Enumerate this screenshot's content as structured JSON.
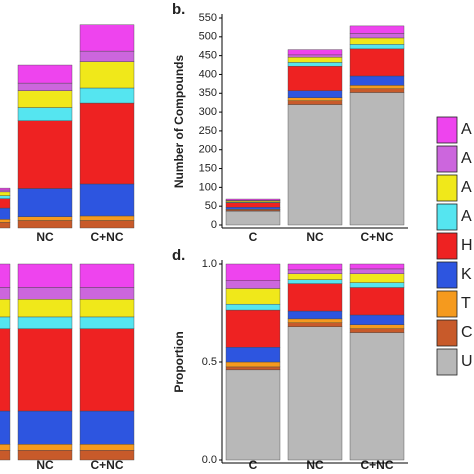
{
  "chart_data": [
    {
      "type": "bar",
      "stacked": true,
      "categories": [
        null,
        "NC",
        "C+NC"
      ],
      "ylim": [
        0,
        550
      ],
      "series": [
        {
          "color": "#c85a2a",
          "values": [
            15,
            20,
            20
          ]
        },
        {
          "color": "#f59a1e",
          "values": [
            8,
            10,
            12
          ]
        },
        {
          "color": "#2d55e0",
          "values": [
            30,
            75,
            85
          ]
        },
        {
          "color": "#ee2222",
          "values": [
            25,
            180,
            215
          ]
        },
        {
          "color": "#55e5f0",
          "values": [
            8,
            35,
            40
          ]
        },
        {
          "color": "#f0e81a",
          "values": [
            10,
            45,
            70
          ]
        },
        {
          "color": "#cc66dd",
          "values": [
            5,
            20,
            28
          ]
        },
        {
          "color": "#ee44ee",
          "values": [
            5,
            48,
            70
          ]
        }
      ]
    },
    {
      "type": "bar",
      "stacked": true,
      "panel_label": "b.",
      "y_label": "Number of Compounds",
      "categories": [
        "C",
        "NC",
        "C+NC"
      ],
      "ylim": [
        0,
        550
      ],
      "yticks": [
        0,
        50,
        100,
        150,
        200,
        250,
        300,
        350,
        400,
        450,
        500,
        550
      ],
      "series": [
        {
          "name": "U",
          "color": "#b8b8b8",
          "values": [
            37,
            320,
            352
          ]
        },
        {
          "name": "C",
          "color": "#c85a2a",
          "values": [
            3,
            10,
            10
          ]
        },
        {
          "name": "T",
          "color": "#f59a1e",
          "values": [
            2,
            8,
            9
          ]
        },
        {
          "name": "K",
          "color": "#2d55e0",
          "values": [
            5,
            19,
            25
          ]
        },
        {
          "name": "H",
          "color": "#ee2222",
          "values": [
            12,
            65,
            72
          ]
        },
        {
          "name": "A",
          "color": "#55e5f0",
          "values": [
            2,
            10,
            12
          ]
        },
        {
          "name": "A",
          "color": "#f0e81a",
          "values": [
            3,
            14,
            17
          ]
        },
        {
          "name": "A",
          "color": "#cc66dd",
          "values": [
            2,
            6,
            12
          ]
        },
        {
          "name": "A",
          "color": "#ee44ee",
          "values": [
            3,
            14,
            20
          ]
        }
      ]
    },
    {
      "type": "bar",
      "stacked": true,
      "categories": [
        null,
        "NC",
        "C+NC"
      ],
      "ylim": [
        0,
        1
      ],
      "series": [
        {
          "color": "#c85a2a",
          "values": [
            0.05,
            0.05,
            0.05
          ]
        },
        {
          "color": "#f59a1e",
          "values": [
            0.03,
            0.03,
            0.03
          ]
        },
        {
          "color": "#2d55e0",
          "values": [
            0.17,
            0.17,
            0.17
          ]
        },
        {
          "color": "#ee2222",
          "values": [
            0.42,
            0.42,
            0.42
          ]
        },
        {
          "color": "#55e5f0",
          "values": [
            0.06,
            0.06,
            0.06
          ]
        },
        {
          "color": "#f0e81a",
          "values": [
            0.09,
            0.09,
            0.09
          ]
        },
        {
          "color": "#cc66dd",
          "values": [
            0.06,
            0.06,
            0.06
          ]
        },
        {
          "color": "#ee44ee",
          "values": [
            0.12,
            0.12,
            0.12
          ]
        }
      ]
    },
    {
      "type": "bar",
      "stacked": true,
      "panel_label": "d.",
      "y_label": "Proportion",
      "categories": [
        "C",
        "NC",
        "C+NC"
      ],
      "ylim": [
        0,
        1
      ],
      "yticks": [
        {
          "value": 0,
          "label": "0.0"
        },
        {
          "value": 0.5,
          "label": "0.5"
        },
        {
          "value": 1,
          "label": "1.0"
        }
      ],
      "series": [
        {
          "color": "#b8b8b8",
          "values": [
            0.46,
            0.68,
            0.65
          ]
        },
        {
          "color": "#c85a2a",
          "values": [
            0.015,
            0.02,
            0.02
          ]
        },
        {
          "color": "#f59a1e",
          "values": [
            0.025,
            0.02,
            0.02
          ]
        },
        {
          "color": "#2d55e0",
          "values": [
            0.075,
            0.04,
            0.05
          ]
        },
        {
          "color": "#ee2222",
          "values": [
            0.19,
            0.14,
            0.14
          ]
        },
        {
          "color": "#55e5f0",
          "values": [
            0.03,
            0.02,
            0.025
          ]
        },
        {
          "color": "#f0e81a",
          "values": [
            0.08,
            0.03,
            0.045
          ]
        },
        {
          "color": "#cc66dd",
          "values": [
            0.04,
            0.02,
            0.025
          ]
        },
        {
          "color": "#ee44ee",
          "values": [
            0.085,
            0.03,
            0.025
          ]
        }
      ]
    }
  ]
}
